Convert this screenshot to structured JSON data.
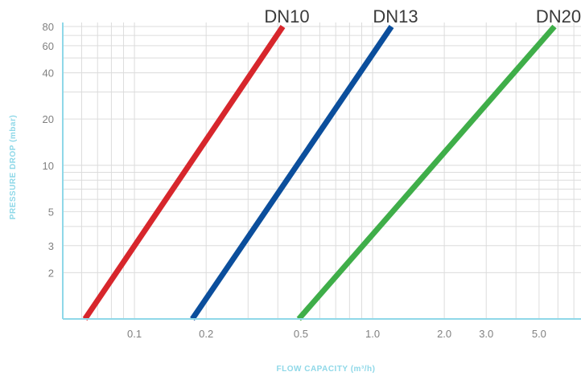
{
  "chart_data": {
    "type": "line",
    "xlabel": "FLOW CAPACITY (m³/h)",
    "ylabel": "PRESSURE DROP (mbar)",
    "x_scale": "log",
    "y_scale": "log",
    "xlim": [
      0.05,
      7.5
    ],
    "ylim": [
      1,
      85
    ],
    "x_ticks": [
      {
        "value": 0.1,
        "label": "0.1"
      },
      {
        "value": 0.2,
        "label": "0.2"
      },
      {
        "value": 0.5,
        "label": "0.5"
      },
      {
        "value": 1.0,
        "label": "1.0"
      },
      {
        "value": 2.0,
        "label": "2.0"
      },
      {
        "value": 3.0,
        "label": "3.0"
      },
      {
        "value": 5.0,
        "label": "5.0"
      }
    ],
    "y_ticks": [
      {
        "value": 2,
        "label": "2"
      },
      {
        "value": 3,
        "label": "3"
      },
      {
        "value": 5,
        "label": "5"
      },
      {
        "value": 10,
        "label": "10"
      },
      {
        "value": 20,
        "label": "20"
      },
      {
        "value": 40,
        "label": "40"
      },
      {
        "value": 60,
        "label": "60"
      },
      {
        "value": 80,
        "label": "80"
      }
    ],
    "grid": true,
    "series": [
      {
        "name": "DN10",
        "color": "#d7262c",
        "x": [
          0.062,
          0.42
        ],
        "y": [
          1,
          80
        ]
      },
      {
        "name": "DN13",
        "color": "#0b4e9c",
        "x": [
          0.175,
          1.2
        ],
        "y": [
          1,
          80
        ]
      },
      {
        "name": "DN20",
        "color": "#3fae49",
        "x": [
          0.49,
          5.8
        ],
        "y": [
          1,
          80
        ]
      }
    ]
  }
}
